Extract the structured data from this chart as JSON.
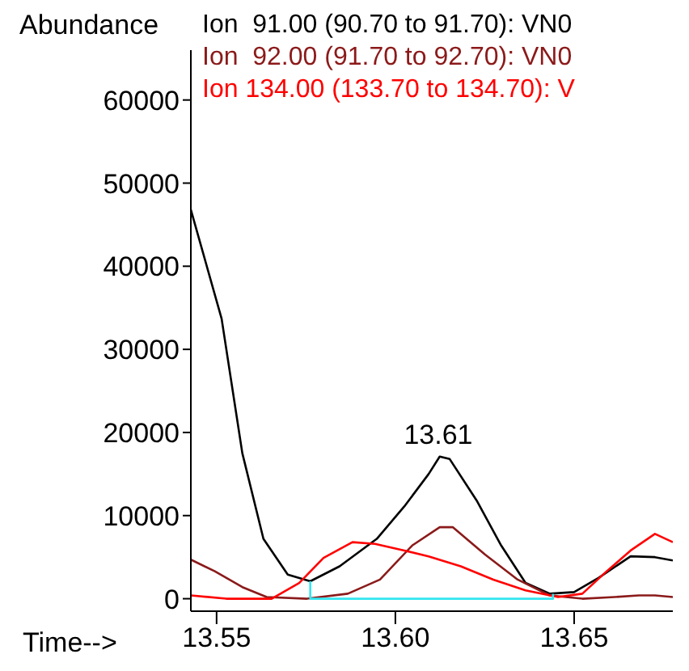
{
  "chart_data": {
    "type": "line",
    "ylabel": "Abundance",
    "xlabel": "Time-->",
    "xlim": [
      13.5428,
      13.6776
    ],
    "xticks": [
      {
        "value": 13.55,
        "label": "13.55"
      },
      {
        "value": 13.6,
        "label": "13.60"
      },
      {
        "value": 13.65,
        "label": "13.65"
      }
    ],
    "ylim": [
      -1500,
      66000
    ],
    "yticks": [
      0,
      10000,
      20000,
      30000,
      40000,
      50000,
      60000
    ],
    "grid": false,
    "legend": "top",
    "marker": "none",
    "line_style": "solid",
    "annotations": [
      {
        "text": "13.61",
        "x": 13.612,
        "y": 17100
      }
    ],
    "series": [
      {
        "name": "Ion  91.00 (90.70 to 91.70): VN0",
        "color": "#000000",
        "x": [
          13.5428,
          13.5514,
          13.5572,
          13.5631,
          13.5699,
          13.5762,
          13.5844,
          13.5948,
          13.6025,
          13.6093,
          13.6124,
          13.6152,
          13.6229,
          13.6296,
          13.6364,
          13.6432,
          13.65,
          13.6568,
          13.6658,
          13.6726,
          13.6776
        ],
        "values": [
          46800,
          33700,
          17500,
          7200,
          2900,
          2100,
          3900,
          7200,
          11100,
          15000,
          17100,
          16800,
          11700,
          6400,
          1900,
          600,
          800,
          2500,
          5100,
          5000,
          4600
        ]
      },
      {
        "name": "Ion  92.00 (91.70 to 92.70): VN0",
        "color": "#8b1a1a",
        "x": [
          13.5428,
          13.5495,
          13.5572,
          13.564,
          13.5753,
          13.5867,
          13.5957,
          13.6047,
          13.6124,
          13.6161,
          13.6251,
          13.6342,
          13.6432,
          13.6523,
          13.6613,
          13.6681,
          13.6726,
          13.6776
        ],
        "values": [
          4700,
          3300,
          1400,
          200,
          0,
          600,
          2300,
          6400,
          8600,
          8600,
          5300,
          2300,
          400,
          0,
          200,
          400,
          400,
          200
        ]
      },
      {
        "name": "Ion 134.00 (133.70 to 134.70): V",
        "color": "#ff0000",
        "x": [
          13.5428,
          13.5527,
          13.5654,
          13.5731,
          13.5799,
          13.588,
          13.5943,
          13.6025,
          13.6093,
          13.6183,
          13.6274,
          13.6364,
          13.6455,
          13.6523,
          13.6591,
          13.6658,
          13.6726,
          13.6776
        ],
        "values": [
          400,
          0,
          0,
          1900,
          4900,
          6800,
          6600,
          5800,
          5100,
          3900,
          2300,
          1000,
          200,
          600,
          3300,
          5800,
          7800,
          6800
        ]
      },
      {
        "color": "#33e6f0",
        "x": [
          13.5762,
          13.5762,
          13.6441,
          13.6441
        ],
        "values": [
          2100,
          0,
          0,
          600
        ]
      }
    ]
  }
}
